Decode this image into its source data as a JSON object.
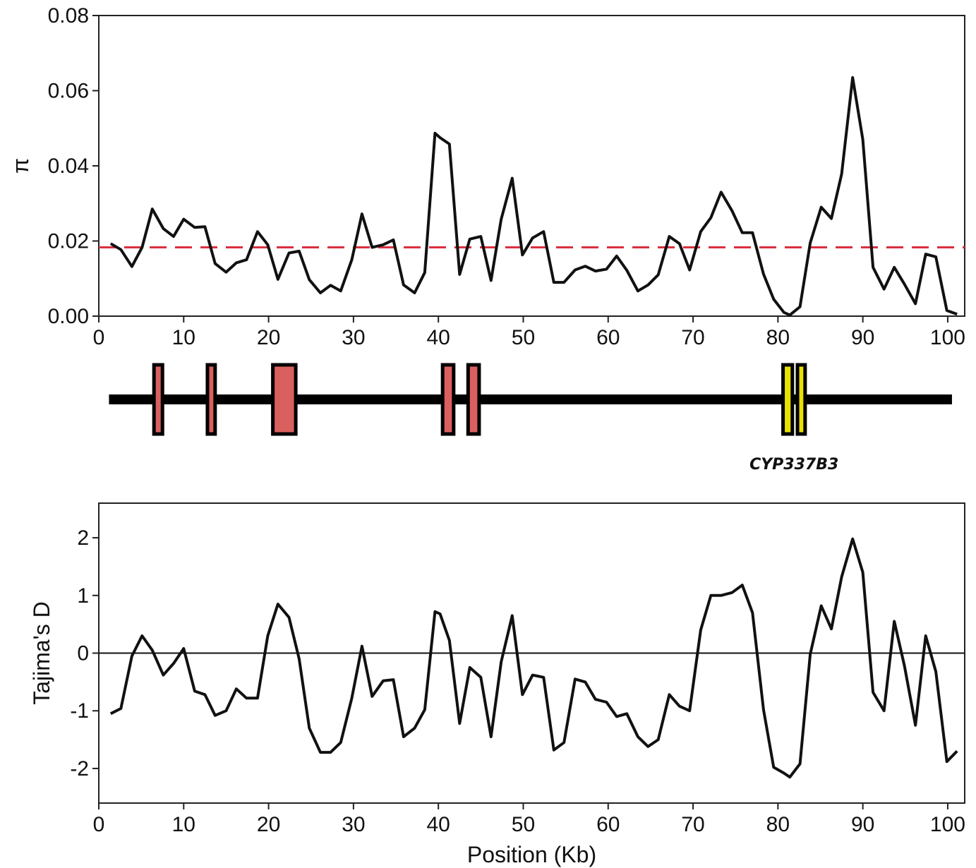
{
  "colors": {
    "line": "#111111",
    "mean_line": "#d9303f",
    "exon": "#d9605e",
    "cyp_exon": "#e8e000",
    "gene_backbone": "#000000"
  },
  "gene_model": {
    "label": "CYP337B3",
    "exons_kb": [
      [
        6.5,
        7.5
      ],
      [
        12.8,
        13.7
      ],
      [
        20.5,
        23.2
      ],
      [
        40.5,
        41.8
      ],
      [
        43.5,
        44.8
      ]
    ],
    "cyp_exons_kb": [
      [
        80.6,
        81.7
      ],
      [
        82.3,
        83.2
      ]
    ],
    "start_kb": 1.2,
    "end_kb": 100.5
  },
  "chart_data": [
    {
      "type": "line",
      "title": "",
      "xlabel": "",
      "ylabel": "π",
      "xlim": [
        0,
        102
      ],
      "ylim": [
        0,
        0.08
      ],
      "xticks": [
        0,
        10,
        20,
        30,
        40,
        50,
        60,
        70,
        80,
        90,
        100
      ],
      "yticks": [
        0,
        0.02,
        0.04,
        0.06,
        0.08
      ],
      "ytick_labels": [
        "0.00",
        "0.02",
        "0.04",
        "0.06",
        "0.08"
      ],
      "reference_line": {
        "y": 0.0183,
        "style": "dashed"
      },
      "grid": false,
      "series": [
        {
          "x": [
            1.4,
            2.6,
            3.9,
            5.1,
            6.3,
            7.6,
            8.8,
            10.0,
            11.3,
            12.5,
            13.7,
            15.0,
            16.2,
            17.4,
            18.7,
            19.9,
            21.1,
            22.4,
            23.6,
            24.8,
            26.1,
            27.3,
            28.5,
            29.8,
            31.0,
            32.2,
            33.5,
            34.7,
            35.9,
            37.2,
            38.4,
            39.6,
            40.2,
            41.3,
            42.5,
            43.7,
            45.0,
            46.2,
            47.4,
            48.7,
            49.9,
            51.1,
            52.4,
            53.6,
            54.8,
            56.1,
            57.3,
            58.5,
            59.8,
            61.0,
            62.2,
            63.5,
            64.7,
            65.9,
            67.2,
            68.4,
            69.6,
            70.9,
            72.1,
            73.3,
            74.6,
            75.8,
            77.0,
            78.3,
            79.5,
            80.7,
            81.4,
            82.6,
            83.8,
            85.1,
            86.3,
            87.5,
            88.8,
            90.0,
            91.2,
            92.5,
            93.7,
            94.9,
            96.2,
            97.4,
            98.6,
            99.9,
            101.1
          ],
          "y": [
            0.0193,
            0.0177,
            0.0132,
            0.0183,
            0.0285,
            0.0233,
            0.0212,
            0.0258,
            0.0236,
            0.0238,
            0.014,
            0.0117,
            0.0142,
            0.015,
            0.0225,
            0.019,
            0.0098,
            0.0168,
            0.0173,
            0.0097,
            0.0062,
            0.0082,
            0.0067,
            0.015,
            0.0272,
            0.0183,
            0.019,
            0.0203,
            0.0083,
            0.0062,
            0.0116,
            0.0487,
            0.0475,
            0.0458,
            0.0111,
            0.0205,
            0.0212,
            0.0095,
            0.0258,
            0.0367,
            0.0163,
            0.0208,
            0.0225,
            0.009,
            0.009,
            0.0123,
            0.0133,
            0.012,
            0.0125,
            0.016,
            0.0122,
            0.0067,
            0.0083,
            0.011,
            0.0212,
            0.0193,
            0.0123,
            0.0225,
            0.0262,
            0.033,
            0.028,
            0.0222,
            0.0222,
            0.0112,
            0.0045,
            0.001,
            0.0003,
            0.0025,
            0.0195,
            0.029,
            0.026,
            0.0378,
            0.0635,
            0.047,
            0.013,
            0.0072,
            0.013,
            0.0085,
            0.0033,
            0.0165,
            0.0158,
            0.0015,
            0.0005
          ]
        }
      ]
    },
    {
      "type": "line",
      "title": "",
      "xlabel": "Position (Kb)",
      "ylabel": "Tajima's D",
      "xlim": [
        0,
        102
      ],
      "ylim": [
        -2.6,
        2.6
      ],
      "xticks": [
        0,
        10,
        20,
        30,
        40,
        50,
        60,
        70,
        80,
        90,
        100
      ],
      "yticks": [
        -2,
        -1,
        0,
        1,
        2
      ],
      "ytick_labels": [
        "-2",
        "-1",
        "0",
        "1",
        "2"
      ],
      "reference_line": {
        "y": 0,
        "style": "solid"
      },
      "grid": false,
      "series": [
        {
          "x": [
            1.4,
            2.6,
            3.9,
            5.1,
            6.3,
            7.6,
            8.8,
            10.0,
            11.3,
            12.5,
            13.7,
            15.0,
            16.2,
            17.4,
            18.7,
            19.9,
            21.1,
            22.4,
            23.6,
            24.8,
            26.1,
            27.3,
            28.5,
            29.8,
            31.0,
            32.2,
            33.5,
            34.7,
            35.9,
            37.2,
            38.4,
            39.6,
            40.2,
            41.3,
            42.5,
            43.7,
            45.0,
            46.2,
            47.4,
            48.7,
            49.9,
            51.1,
            52.4,
            53.6,
            54.8,
            56.1,
            57.3,
            58.5,
            59.8,
            61.0,
            62.2,
            63.5,
            64.7,
            65.9,
            67.2,
            68.4,
            69.6,
            70.9,
            72.1,
            73.3,
            74.6,
            75.8,
            77.0,
            78.3,
            79.5,
            80.7,
            81.4,
            82.6,
            83.8,
            85.1,
            86.3,
            87.5,
            88.8,
            90.0,
            91.2,
            92.5,
            93.7,
            94.9,
            96.2,
            97.4,
            98.6,
            99.9,
            101.1
          ],
          "y": [
            -1.05,
            -0.96,
            -0.05,
            0.3,
            0.05,
            -0.38,
            -0.18,
            0.08,
            -0.66,
            -0.72,
            -1.08,
            -1.0,
            -0.62,
            -0.78,
            -0.78,
            0.3,
            0.85,
            0.62,
            -0.1,
            -1.3,
            -1.72,
            -1.72,
            -1.55,
            -0.78,
            0.12,
            -0.75,
            -0.48,
            -0.46,
            -1.45,
            -1.3,
            -0.98,
            0.72,
            0.68,
            0.22,
            -1.22,
            -0.25,
            -0.42,
            -1.45,
            -0.15,
            0.65,
            -0.72,
            -0.38,
            -0.42,
            -1.68,
            -1.55,
            -0.45,
            -0.5,
            -0.8,
            -0.85,
            -1.1,
            -1.05,
            -1.45,
            -1.62,
            -1.5,
            -0.72,
            -0.92,
            -1.0,
            0.4,
            1.0,
            1.0,
            1.05,
            1.18,
            0.7,
            -0.98,
            -1.98,
            -2.08,
            -2.15,
            -1.92,
            -0.02,
            0.82,
            0.42,
            1.32,
            1.98,
            1.4,
            -0.68,
            -1.0,
            0.55,
            -0.22,
            -1.25,
            0.3,
            -0.32,
            -1.88,
            -1.7
          ]
        }
      ]
    }
  ]
}
